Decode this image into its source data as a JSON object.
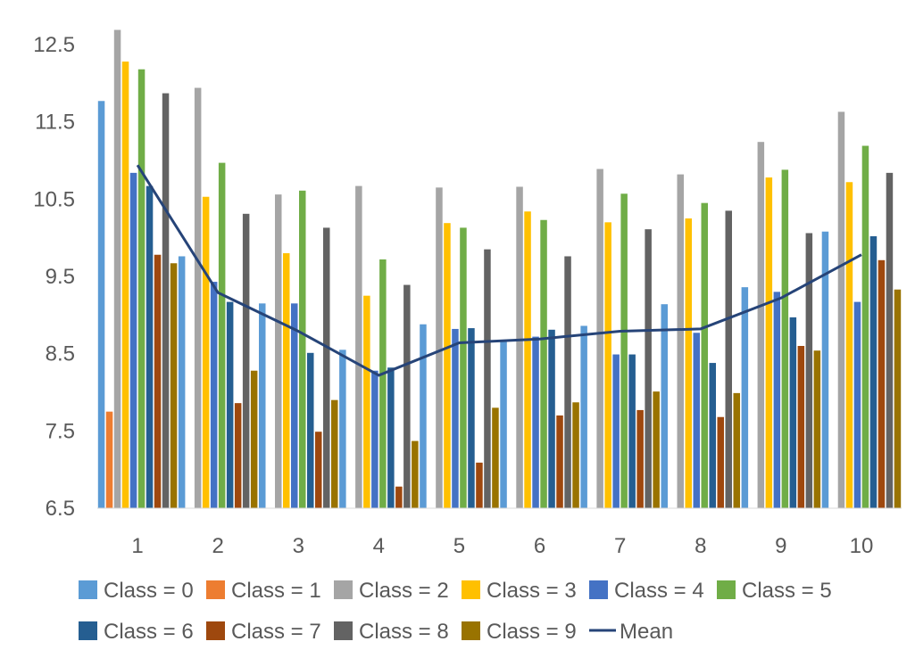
{
  "chart_data": {
    "type": "bar",
    "title": "",
    "xlabel": "",
    "ylabel": "",
    "categories": [
      "1",
      "2",
      "3",
      "4",
      "5",
      "6",
      "7",
      "8",
      "9",
      "10"
    ],
    "ylim": [
      6.5,
      12.5
    ],
    "yticks": [
      "6.5",
      "7.5",
      "8.5",
      "9.5",
      "10.5",
      "11.5",
      "12.5"
    ],
    "grid": false,
    "legend_position": "bottom",
    "series": [
      {
        "name": "Class = 0",
        "color": "#5B9BD5",
        "values": [
          11.77,
          9.76,
          9.15,
          8.55,
          8.88,
          8.67,
          8.86,
          9.14,
          9.36,
          10.08
        ]
      },
      {
        "name": "Class = 1",
        "color": "#ED7D31",
        "values": [
          7.75,
          6.41,
          6.41,
          6.41,
          6.41,
          6.41,
          6.41,
          6.41,
          6.41,
          6.41
        ]
      },
      {
        "name": "Class = 2",
        "color": "#A5A5A5",
        "values": [
          12.69,
          11.94,
          10.56,
          10.67,
          10.65,
          10.66,
          10.89,
          10.82,
          11.24,
          11.63
        ]
      },
      {
        "name": "Class = 3",
        "color": "#FFC000",
        "values": [
          12.28,
          10.53,
          9.8,
          9.25,
          10.19,
          10.34,
          10.2,
          10.25,
          10.78,
          10.72
        ]
      },
      {
        "name": "Class = 4",
        "color": "#4472C4",
        "values": [
          10.84,
          9.43,
          9.15,
          8.28,
          8.82,
          8.72,
          8.49,
          8.77,
          9.3,
          9.17
        ]
      },
      {
        "name": "Class = 5",
        "color": "#70AD47",
        "values": [
          12.18,
          10.97,
          10.61,
          9.72,
          10.13,
          10.23,
          10.57,
          10.45,
          10.88,
          11.19
        ]
      },
      {
        "name": "Class = 6",
        "color": "#255E91",
        "values": [
          10.67,
          9.17,
          8.51,
          8.32,
          8.83,
          8.81,
          8.49,
          8.38,
          8.97,
          10.02
        ]
      },
      {
        "name": "Class = 7",
        "color": "#9E480E",
        "values": [
          9.78,
          7.86,
          7.49,
          6.78,
          7.09,
          7.7,
          7.77,
          7.68,
          8.6,
          9.71
        ]
      },
      {
        "name": "Class = 8",
        "color": "#636363",
        "values": [
          11.87,
          10.31,
          10.13,
          9.39,
          9.85,
          9.76,
          10.11,
          10.35,
          10.06,
          10.84
        ]
      },
      {
        "name": "Class = 9",
        "color": "#997300",
        "values": [
          9.67,
          8.28,
          7.9,
          7.37,
          7.8,
          7.87,
          8.01,
          7.99,
          8.54,
          9.33
        ]
      }
    ],
    "mean": {
      "name": "Mean",
      "color": "#264478",
      "values": [
        10.94,
        9.29,
        8.79,
        8.22,
        8.64,
        8.69,
        8.79,
        8.82,
        9.22,
        9.78
      ]
    }
  }
}
